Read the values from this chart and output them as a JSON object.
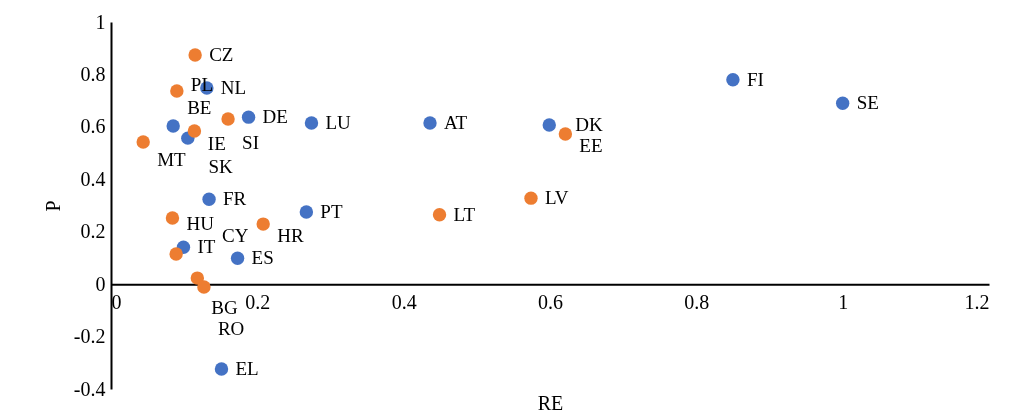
{
  "chart_data": {
    "type": "scatter",
    "xlabel": "RE",
    "ylabel": "P",
    "xlim": [
      0,
      1.2
    ],
    "xticks": [
      0,
      0.2,
      0.4,
      0.6,
      0.8,
      1,
      1.2
    ],
    "ylim": [
      -0.4,
      1
    ],
    "yticks": [
      {
        "value": -0.4,
        "label": "-0.4"
      },
      {
        "value": -0.2,
        "label": "-0.2"
      },
      0,
      0.2,
      0.4,
      0.6,
      0.8,
      1
    ],
    "grid": false,
    "legend": false,
    "marker": "circle",
    "series": [
      {
        "color": "#4472c4",
        "x": [
          0.85,
          1.0,
          0.436,
          0.599,
          0.274,
          0.188,
          0.131,
          0.085,
          0.105,
          0.134,
          0.267,
          0.099,
          0.173,
          0.151
        ],
        "values": [
          0.78,
          0.69,
          0.615,
          0.607,
          0.615,
          0.637,
          0.748,
          0.603,
          0.557,
          0.324,
          0.275,
          0.141,
          0.099,
          -0.324
        ]
      },
      {
        "color": "#ed7d31",
        "x": [
          0.115,
          0.09,
          0.16,
          0.114,
          0.044,
          0.621,
          0.574,
          0.449,
          0.084,
          0.208,
          0.089,
          0.118,
          0.127
        ],
        "values": [
          0.874,
          0.737,
          0.63,
          0.584,
          0.542,
          0.573,
          0.328,
          0.265,
          0.252,
          0.229,
          0.115,
          0.023,
          -0.011
        ]
      }
    ],
    "annotations": [
      {
        "text": "FI",
        "x": 0.85,
        "y": 0.78
      },
      {
        "text": "SE",
        "x": 1.0,
        "y": 0.69
      },
      {
        "text": "AT",
        "x": 0.436,
        "y": 0.615
      },
      {
        "text": "DK",
        "x": 0.599,
        "y": 0.607
      },
      {
        "text": "LU",
        "x": 0.274,
        "y": 0.615
      },
      {
        "text": "DE",
        "x": 0.188,
        "y": 0.637
      },
      {
        "text": "NL",
        "x": 0.131,
        "y": 0.748
      },
      {
        "text": "BE",
        "x": 0.085,
        "y": 0.603
      },
      {
        "text": "IE",
        "x": 0.105,
        "y": 0.557
      },
      {
        "text": "FR",
        "x": 0.134,
        "y": 0.324
      },
      {
        "text": "PT",
        "x": 0.267,
        "y": 0.275
      },
      {
        "text": "IT",
        "x": 0.099,
        "y": 0.141
      },
      {
        "text": "ES",
        "x": 0.173,
        "y": 0.099
      },
      {
        "text": "EL",
        "x": 0.151,
        "y": -0.324
      },
      {
        "text": "CZ",
        "x": 0.115,
        "y": 0.874
      },
      {
        "text": "PL",
        "x": 0.09,
        "y": 0.737
      },
      {
        "text": "SI",
        "x": 0.16,
        "y": 0.63
      },
      {
        "text": "SK",
        "x": 0.114,
        "y": 0.584
      },
      {
        "text": "MT",
        "x": 0.044,
        "y": 0.542
      },
      {
        "text": "EE",
        "x": 0.621,
        "y": 0.573
      },
      {
        "text": "LV",
        "x": 0.574,
        "y": 0.328
      },
      {
        "text": "LT",
        "x": 0.449,
        "y": 0.265
      },
      {
        "text": "HU",
        "x": 0.084,
        "y": 0.252
      },
      {
        "text": "HR",
        "x": 0.208,
        "y": 0.229
      },
      {
        "text": "CY",
        "x": 0.089,
        "y": 0.115
      },
      {
        "text": "BG",
        "x": 0.118,
        "y": 0.023
      },
      {
        "text": "RO",
        "x": 0.127,
        "y": -0.011
      }
    ]
  }
}
